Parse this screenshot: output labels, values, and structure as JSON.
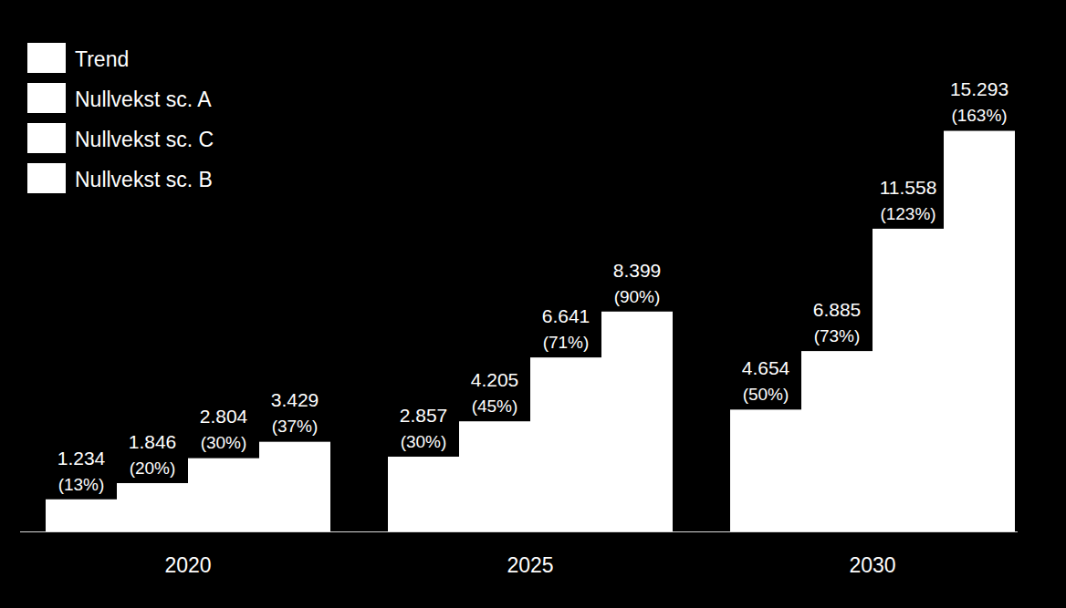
{
  "chart_data": {
    "type": "bar",
    "categories": [
      "2020",
      "2025",
      "2030"
    ],
    "series": [
      {
        "name": "Trend",
        "color": "#ffffff",
        "values": [
          1234,
          2857,
          4654
        ],
        "value_labels": [
          "1.234",
          "2.857",
          "4.654"
        ],
        "share_labels": [
          "(13%)",
          "(30%)",
          "(50%)"
        ]
      },
      {
        "name": "Nullvekst sc. A",
        "color": "#ffffff",
        "values": [
          1846,
          4205,
          6885
        ],
        "value_labels": [
          "1.846",
          "4.205",
          "6.885"
        ],
        "share_labels": [
          "(20%)",
          "(45%)",
          "(73%)"
        ]
      },
      {
        "name": "Nullvekst sc. C",
        "color": "#ffffff",
        "values": [
          2804,
          6641,
          11558
        ],
        "value_labels": [
          "2.804",
          "6.641",
          "11.558"
        ],
        "share_labels": [
          "(30%)",
          "(71%)",
          "(123%)"
        ]
      },
      {
        "name": "Nullvekst sc. B",
        "color": "#ffffff",
        "values": [
          3429,
          8399,
          15293
        ],
        "value_labels": [
          "3.429",
          "8.399",
          "15.293"
        ],
        "share_labels": [
          "(37%)",
          "(90%)",
          "(163%)"
        ]
      }
    ],
    "ylim": [
      0,
      20000
    ],
    "tick_labels": "x",
    "data_labels": true,
    "legend": "top-left"
  }
}
